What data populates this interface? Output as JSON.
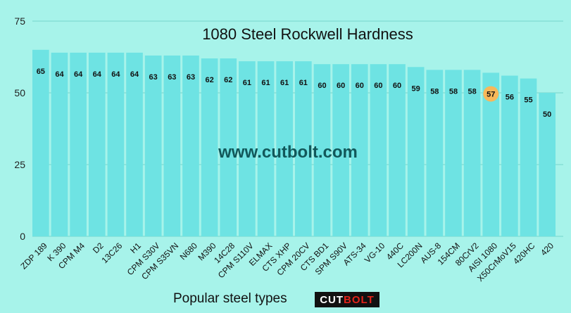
{
  "chart_data": {
    "type": "bar",
    "title": "1080 Steel Rockwell Hardness",
    "xlabel": "Popular steel types",
    "ylabel": "",
    "ylim": [
      0,
      75
    ],
    "yticks": [
      0,
      25,
      50,
      75
    ],
    "grid": true,
    "categories": [
      "ZDP 189",
      "K 390",
      "CPM M4",
      "D2",
      "13C26",
      "H1",
      "CPM S30V",
      "CPM S35VN",
      "N680",
      "M390",
      "14C28",
      "CPM S110V",
      "ELMAX",
      "CTS XHP",
      "CPM 20CV",
      "CTS BD1",
      "SPM S90V",
      "ATS-34",
      "VG-10",
      "440C",
      "LC200N",
      "AUS-8",
      "154CM",
      "80CrV2",
      "AISI 1080",
      "X50CrMoV15",
      "420HC",
      "420"
    ],
    "values": [
      65,
      64,
      64,
      64,
      64,
      64,
      63,
      63,
      63,
      62,
      62,
      61,
      61,
      61,
      61,
      60,
      60,
      60,
      60,
      60,
      59,
      58,
      58,
      58,
      57,
      56,
      55,
      50
    ],
    "highlight": "AISI 1080",
    "colors": {
      "bar": "#6ee3e3",
      "highlight_marker": "#f7b85a",
      "grid": "#74d6cc",
      "background": "#a7f3ea"
    }
  },
  "watermark": "www.cutbolt.com",
  "brand": {
    "part1": "CUT",
    "part2": "BOLT"
  }
}
